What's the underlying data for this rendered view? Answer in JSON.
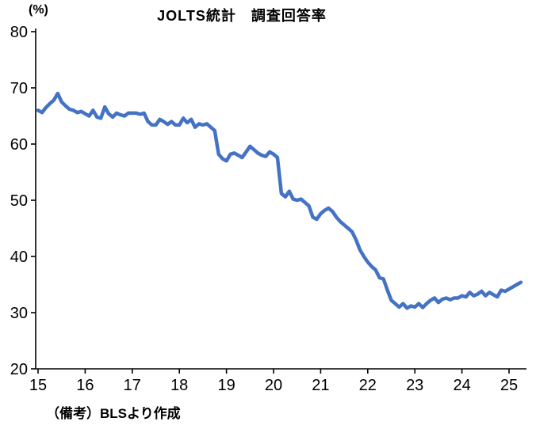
{
  "chart_data": {
    "type": "line",
    "title": "JOLTS統計　調査回答率",
    "unit_label": "(%)",
    "note": "（備考）BLSより作成",
    "ylim": [
      20,
      80
    ],
    "yticks": [
      20,
      30,
      40,
      50,
      60,
      70,
      80
    ],
    "xtick_labels": [
      "15",
      "16",
      "17",
      "18",
      "19",
      "20",
      "21",
      "22",
      "23",
      "24",
      "25"
    ],
    "x_start_year": 2015,
    "x_frequency": "monthly",
    "legend": "none",
    "grid": "off",
    "line_color": "#4472C4",
    "axis_color": "#000000",
    "series_name": "JOLTS survey response rate (%)",
    "values": [
      66.0,
      65.6,
      66.5,
      67.2,
      67.8,
      69.0,
      67.5,
      66.8,
      66.2,
      66.0,
      65.6,
      65.8,
      65.4,
      65.0,
      66.0,
      64.8,
      64.6,
      66.6,
      65.4,
      64.8,
      65.5,
      65.2,
      65.0,
      65.5,
      65.5,
      65.5,
      65.3,
      65.5,
      64.0,
      63.4,
      63.4,
      64.4,
      64.0,
      63.5,
      64.0,
      63.4,
      63.4,
      64.6,
      63.8,
      64.4,
      63.0,
      63.6,
      63.4,
      63.6,
      63.0,
      62.4,
      58.2,
      57.4,
      57.0,
      58.2,
      58.4,
      58.0,
      57.6,
      58.6,
      59.6,
      59.0,
      58.4,
      58.0,
      57.8,
      58.6,
      58.2,
      57.6,
      51.2,
      50.6,
      51.6,
      50.2,
      50.0,
      50.2,
      49.6,
      49.0,
      47.0,
      46.6,
      47.6,
      48.2,
      48.6,
      48.0,
      47.0,
      46.2,
      45.6,
      45.0,
      44.4,
      43.0,
      41.2,
      40.0,
      39.0,
      38.2,
      37.6,
      36.2,
      36.0,
      34.0,
      32.2,
      31.6,
      31.0,
      31.6,
      30.8,
      31.2,
      31.0,
      31.6,
      30.9,
      31.6,
      32.2,
      32.6,
      31.8,
      32.4,
      32.6,
      32.3,
      32.6,
      32.6,
      33.0,
      32.8,
      33.6,
      33.0,
      33.3,
      33.8,
      33.0,
      33.6,
      33.2,
      32.8,
      34.0,
      33.8,
      34.2,
      34.6,
      35.0,
      35.4
    ]
  }
}
